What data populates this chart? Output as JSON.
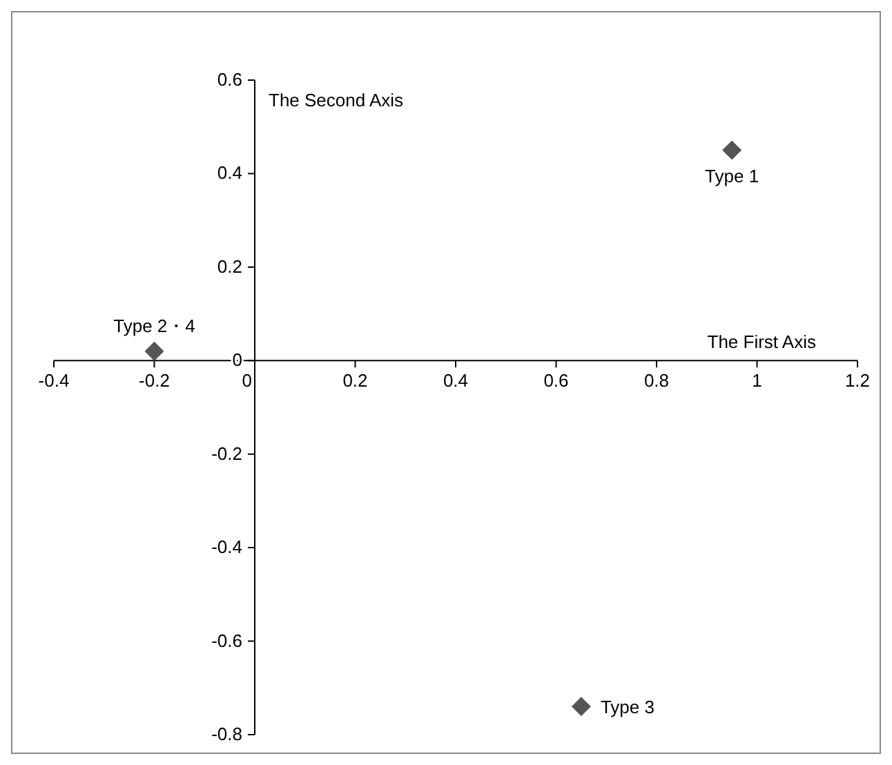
{
  "chart_data": {
    "type": "scatter",
    "xlabel": "The First Axis",
    "ylabel": "The Second Axis",
    "x": [
      0.95,
      -0.2,
      0.65
    ],
    "series": [
      {
        "color": "#555555",
        "values": [
          0.45,
          0.02,
          -0.74
        ]
      }
    ],
    "marker": "diamond",
    "grid": false,
    "legend": false,
    "xlim": [
      -0.4,
      1.2
    ],
    "xticks": [
      -0.4,
      -0.2,
      0,
      0.2,
      0.4,
      0.6,
      0.8,
      1,
      1.2
    ],
    "ylim": [
      -0.8,
      0.6
    ],
    "yticks": [
      -0.8,
      -0.6,
      -0.4,
      -0.2,
      0,
      0.2,
      0.4,
      0.6
    ],
    "annotations": [
      {
        "text": "Type 1",
        "x": 0.95,
        "y": 0.45
      },
      {
        "text": "Type 2・4",
        "x": -0.2,
        "y": 0.02
      },
      {
        "text": "Type 3",
        "x": 0.65,
        "y": -0.74
      }
    ]
  }
}
